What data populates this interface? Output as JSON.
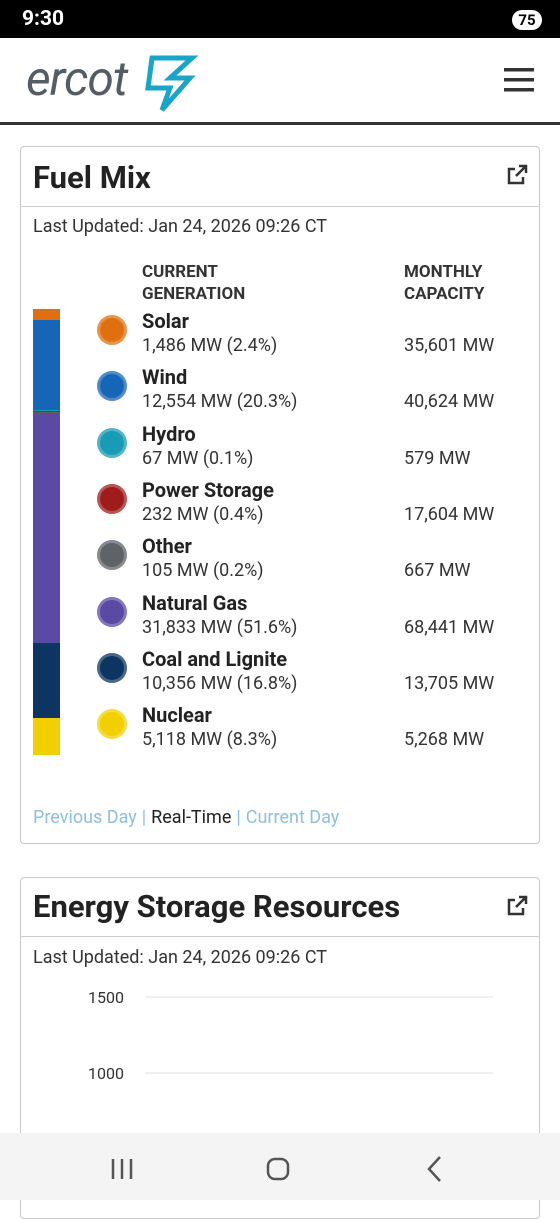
{
  "status_bar": {
    "time": "9:30",
    "battery": "75"
  },
  "header": {
    "logo": "ercot"
  },
  "fuel_mix": {
    "title": "Fuel Mix",
    "last_updated": "Last Updated: Jan 24, 2026 09:26 CT",
    "column_headers": [
      "CURRENT GENERATION",
      "MONTHLY CAPACITY"
    ],
    "rows": [
      {
        "name": "Solar",
        "generation": "1,486 MW (2.4%)",
        "capacity": "35,601 MW",
        "share": 2.4,
        "color": "#e0700f"
      },
      {
        "name": "Wind",
        "generation": "12,554 MW (20.3%)",
        "capacity": "40,624 MW",
        "share": 20.3,
        "color": "#1666b8"
      },
      {
        "name": "Hydro",
        "generation": "67 MW (0.1%)",
        "capacity": "579 MW",
        "share": 0.1,
        "color": "#1a9bb5"
      },
      {
        "name": "Power Storage",
        "generation": "232 MW (0.4%)",
        "capacity": "17,604 MW",
        "share": 0.4,
        "color": "#a01c1c"
      },
      {
        "name": "Other",
        "generation": "105 MW (0.2%)",
        "capacity": "667 MW",
        "share": 0.2,
        "color": "#5f6368"
      },
      {
        "name": "Natural Gas",
        "generation": "31,833 MW (51.6%)",
        "capacity": "68,441 MW",
        "share": 51.6,
        "color": "#5b4aa3"
      },
      {
        "name": "Coal and Lignite",
        "generation": "10,356 MW (16.8%)",
        "capacity": "13,705 MW",
        "share": 16.8,
        "color": "#0d3562"
      },
      {
        "name": "Nuclear",
        "generation": "5,118 MW (8.3%)",
        "capacity": "5,268 MW",
        "share": 8.3,
        "color": "#f2d000"
      }
    ],
    "links": [
      "Previous Day",
      "|",
      "Real-Time",
      "|",
      "Current Day"
    ]
  },
  "energy_storage": {
    "title": "Energy Storage Resources",
    "last_updated": "Last Updated: Jan 24, 2026 09:26 CT",
    "chart": {
      "type": "line",
      "yticks": [
        1500,
        1000
      ]
    }
  }
}
